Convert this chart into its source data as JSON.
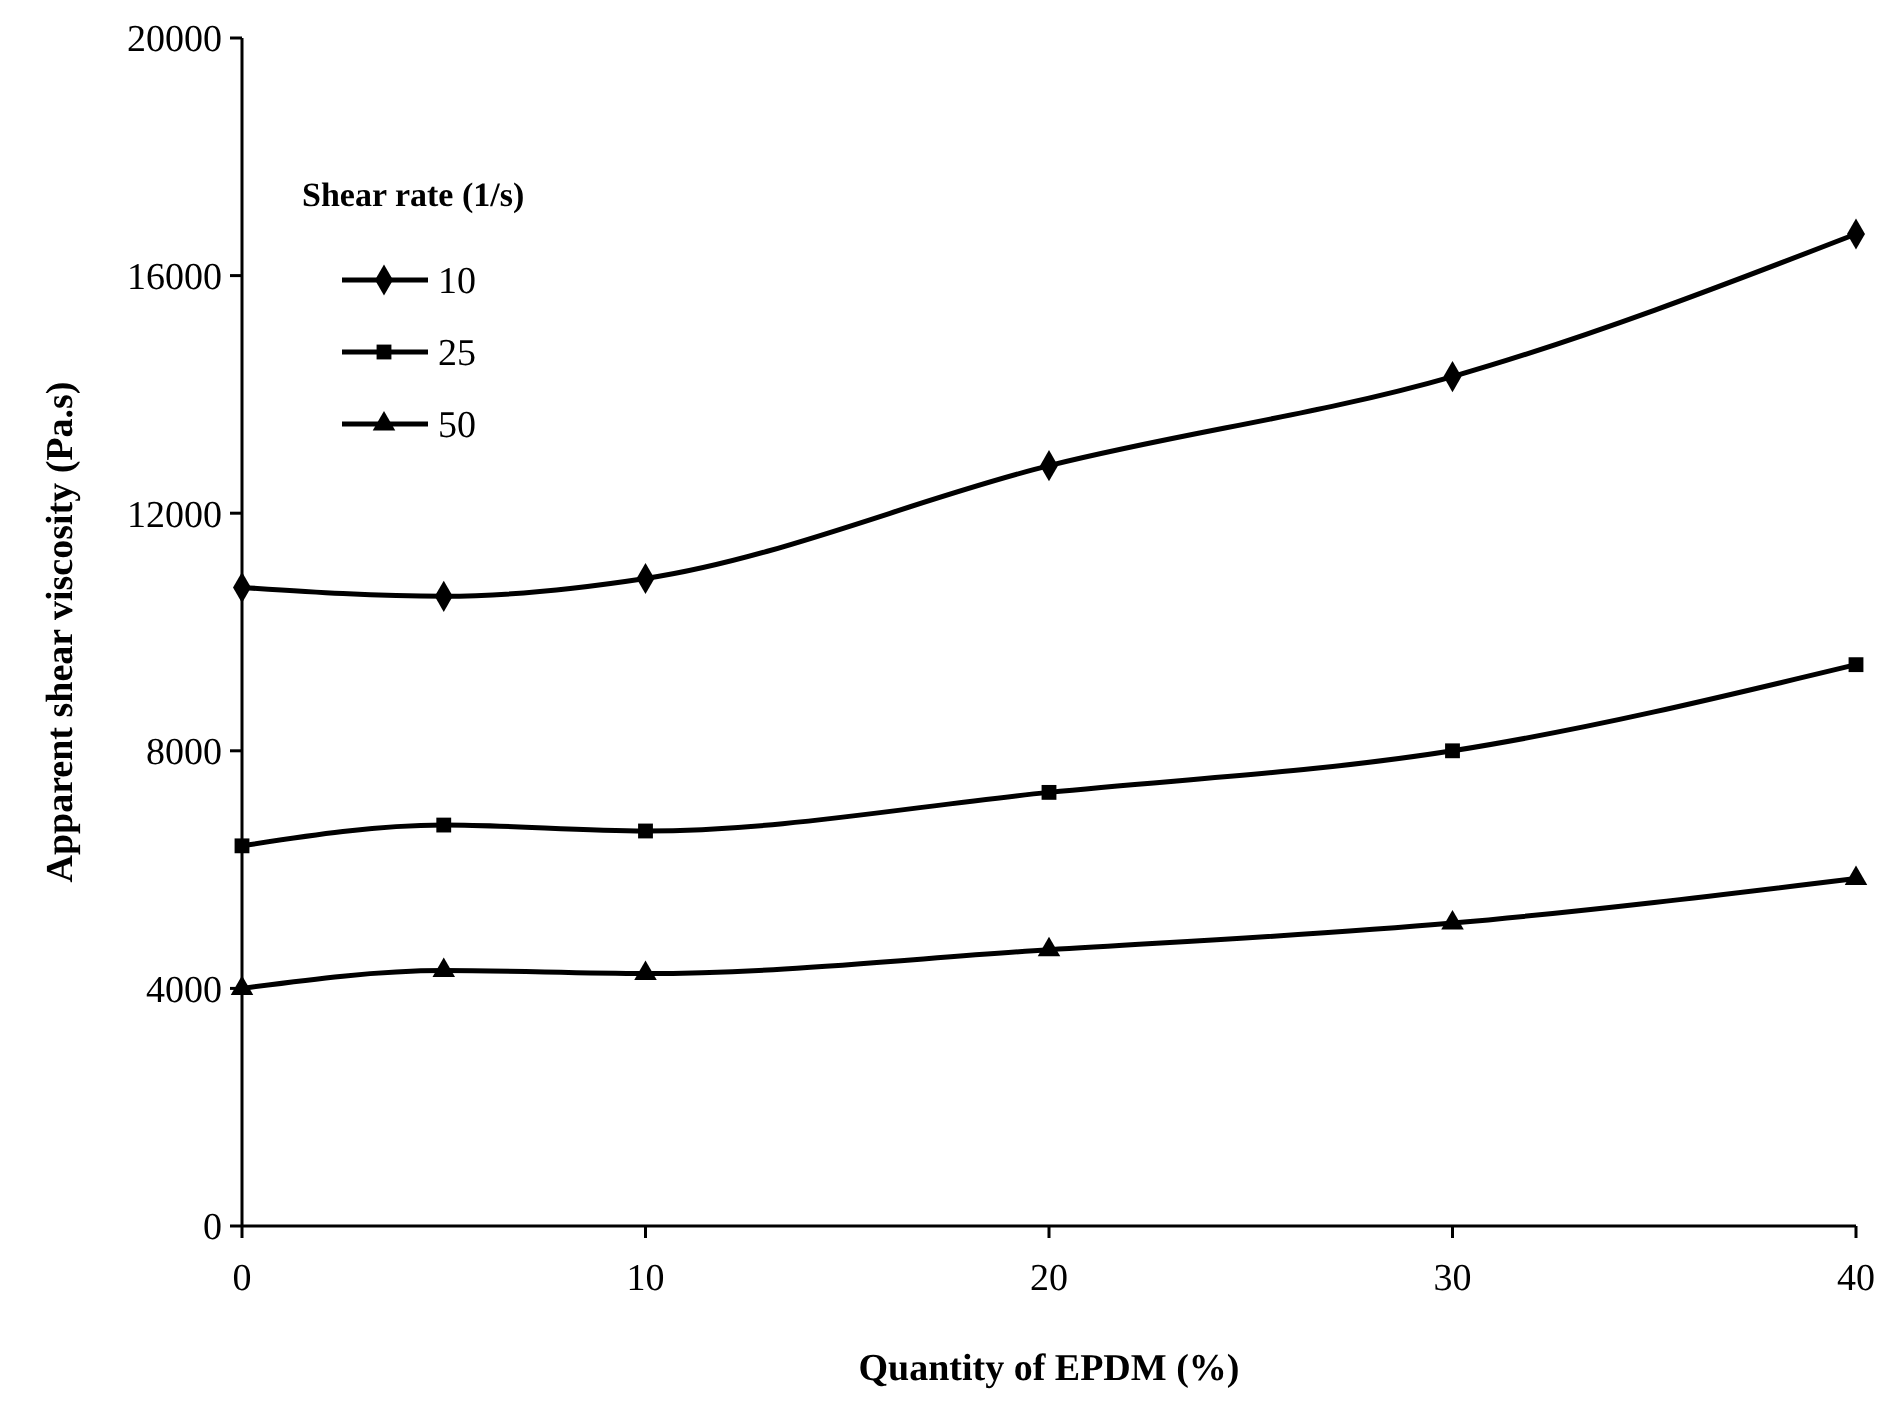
{
  "chart_data": {
    "type": "line",
    "xlabel": "Quantity of EPDM (%)",
    "ylabel": "Apparent shear viscosity (Pa.s)",
    "legend_title": "Shear rate (1/s)",
    "legend": "top left",
    "grid": false,
    "x": [
      0,
      5,
      10,
      20,
      30,
      40
    ],
    "xlim": [
      0,
      40
    ],
    "xticks": [
      0,
      10,
      20,
      30,
      40
    ],
    "ylim": [
      0,
      20000
    ],
    "yticks": [
      0,
      4000,
      8000,
      12000,
      16000,
      20000
    ],
    "series": [
      {
        "name": "10",
        "color": "#000000",
        "marker": "diamond",
        "values": [
          10750,
          10600,
          10900,
          12800,
          14300,
          16700
        ]
      },
      {
        "name": "25",
        "color": "#000000",
        "marker": "square",
        "values": [
          6400,
          6750,
          6650,
          7300,
          8000,
          9450
        ]
      },
      {
        "name": "50",
        "color": "#000000",
        "marker": "triangle",
        "values": [
          4000,
          4300,
          4250,
          4650,
          5100,
          5850
        ]
      }
    ]
  }
}
